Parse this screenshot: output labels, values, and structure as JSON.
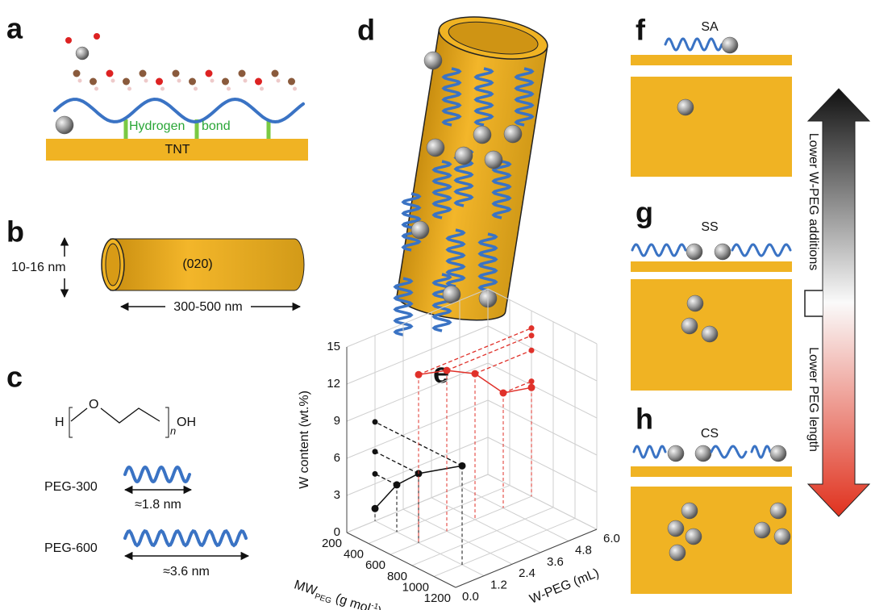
{
  "panels": {
    "a": {
      "label": "a",
      "bond_1": "Hydrogen",
      "bond_2": "bond",
      "substrate": "TNT"
    },
    "b": {
      "label": "b",
      "plane": "(020)",
      "diameter": "10-16 nm",
      "length": "300-500 nm"
    },
    "c": {
      "label": "c",
      "formula": {
        "h": "H",
        "o": "O",
        "n": "n",
        "oh": "OH"
      },
      "peg_short": "PEG-300",
      "peg_short_length": "≈1.8 nm",
      "peg_long": "PEG-600",
      "peg_long_length": "≈3.6 nm"
    },
    "d": {
      "label": "d"
    },
    "f": {
      "label": "f",
      "caption": "SA"
    },
    "g": {
      "label": "g",
      "caption": "SS"
    },
    "h": {
      "label": "h",
      "caption": "CS"
    },
    "arrow": {
      "top": "Lower W-PEG additions",
      "bottom": "Lower PEG length"
    }
  },
  "chart_data": {
    "type": "line3d",
    "label": "e",
    "y_label": "W content (wt.%)",
    "x_label": {
      "main": "MW",
      "sub": "PEG",
      "unit": " (g mol",
      "exp": "-1",
      "end": ")"
    },
    "z_label": "W-PEG (mL)",
    "xlim": [
      200,
      1200
    ],
    "xticks": [
      200,
      400,
      600,
      800,
      1000,
      1200
    ],
    "zlim": [
      0,
      6
    ],
    "zticks": [
      {
        "value": 0,
        "label": "0.0"
      },
      1.2,
      2.4,
      3.6,
      4.8,
      {
        "value": 6,
        "label": "6.0"
      }
    ],
    "ylim": [
      0,
      15
    ],
    "yticks": [
      0,
      3,
      6,
      9,
      12,
      15
    ],
    "grid": true,
    "series": [
      {
        "color": "#111111",
        "x": [
          200,
          400,
          600,
          1000
        ],
        "z": [
          1.2,
          1.2,
          1.2,
          1.2
        ],
        "values": [
          1.0,
          3.8,
          5.6,
          8.0
        ]
      },
      {
        "color": "#e0312a",
        "x": [
          600,
          600,
          600,
          600,
          600
        ],
        "z": [
          1.2,
          2.4,
          3.6,
          4.8,
          6.0
        ],
        "values": [
          13.6,
          13.0,
          11.8,
          9.3,
          8.8
        ]
      }
    ]
  }
}
